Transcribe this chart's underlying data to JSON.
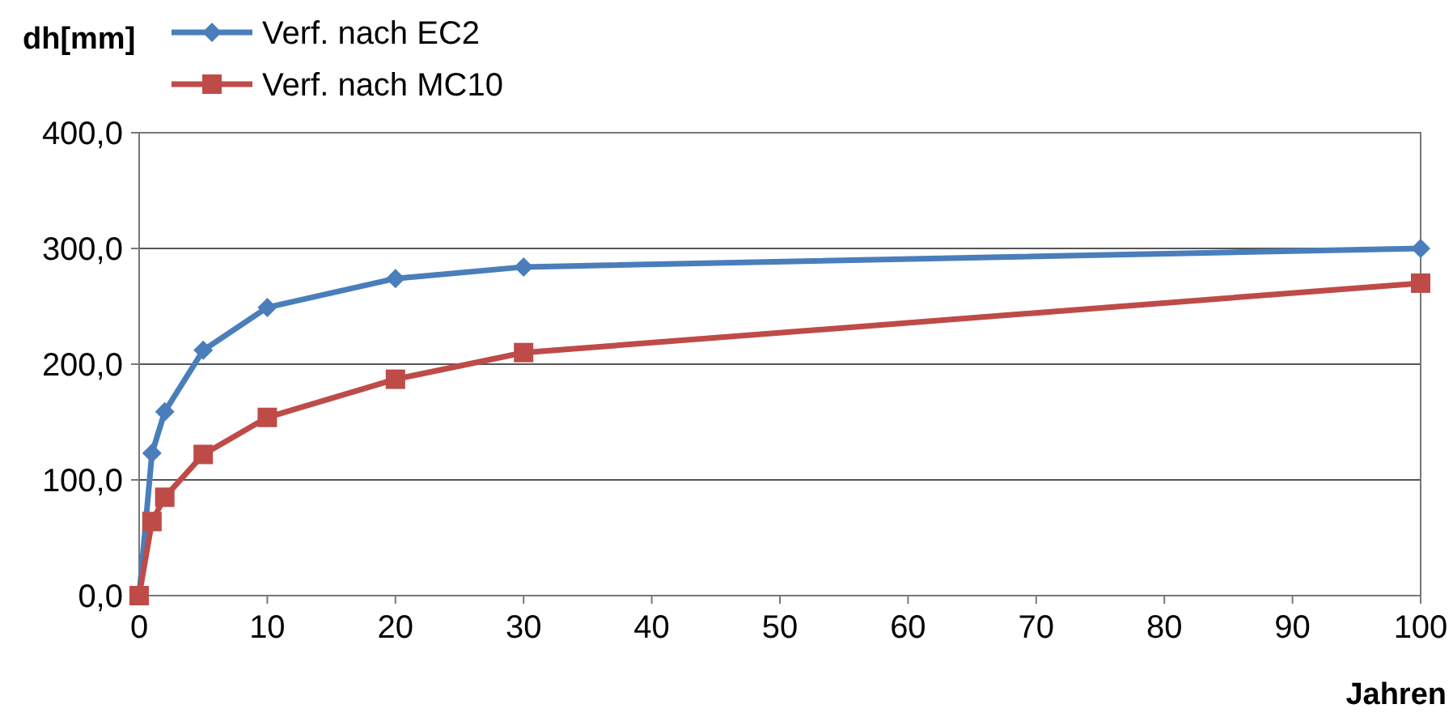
{
  "chart_data": {
    "type": "line",
    "xlabel": "Jahren",
    "ylabel": "dh[mm]",
    "xlim": [
      0,
      100
    ],
    "xticks": [
      0,
      10,
      20,
      30,
      40,
      50,
      60,
      70,
      80,
      90,
      100
    ],
    "ylim": [
      0,
      400
    ],
    "yticks": [
      {
        "value": 0,
        "label": "0,0"
      },
      {
        "value": 100,
        "label": "100,0"
      },
      {
        "value": 200,
        "label": "200,0"
      },
      {
        "value": 300,
        "label": "300,0"
      },
      {
        "value": 400,
        "label": "400,0"
      }
    ],
    "grid": "y",
    "legend": "top left",
    "line_style": "solid",
    "series": [
      {
        "name": "Verf. nach EC2",
        "color": "#4a7ebb",
        "marker": "diamond",
        "x": [
          0,
          1,
          2,
          5,
          10,
          20,
          30,
          100
        ],
        "values": [
          0,
          123,
          159,
          212,
          249,
          274,
          284,
          300
        ]
      },
      {
        "name": "Verf. nach MC10",
        "color": "#be4b48",
        "marker": "square",
        "x": [
          0,
          1,
          2,
          5,
          10,
          20,
          30,
          100
        ],
        "values": [
          0,
          64,
          85,
          122,
          154,
          187,
          210,
          270
        ]
      }
    ]
  }
}
